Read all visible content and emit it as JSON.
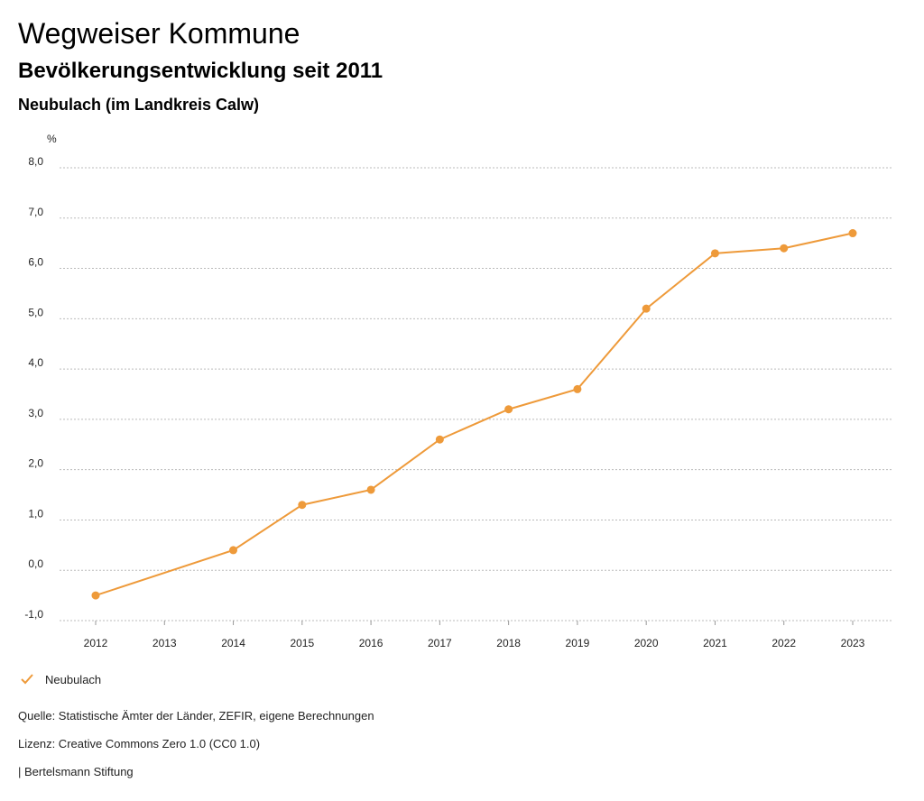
{
  "header": {
    "title": "Wegweiser Kommune",
    "subtitle": "Bevölkerungsentwicklung seit 2011",
    "region": "Neubulach (im Landkreis Calw)"
  },
  "legend": {
    "label": "Neubulach",
    "icon": "check-icon"
  },
  "footer": {
    "source": "Quelle: Statistische Ämter der Länder, ZEFIR, eigene Berechnungen",
    "license": "Lizenz: Creative Commons Zero 1.0 (CC0 1.0)",
    "publisher": "| Bertelsmann Stiftung"
  },
  "colors": {
    "series": "#ee9a3a",
    "grid": "#bbbbbb",
    "axis": "#999999"
  },
  "chart_data": {
    "type": "line",
    "title": "Bevölkerungsentwicklung seit 2011",
    "ylabel": "%",
    "xlabel": "",
    "categories": [
      "2012",
      "2013",
      "2014",
      "2015",
      "2016",
      "2017",
      "2018",
      "2019",
      "2020",
      "2021",
      "2022",
      "2023"
    ],
    "ylim": [
      -1,
      8
    ],
    "yticks": [
      "-1,0",
      "0,0",
      "1,0",
      "2,0",
      "3,0",
      "4,0",
      "5,0",
      "6,0",
      "7,0",
      "8,0"
    ],
    "grid": true,
    "series": [
      {
        "name": "Neubulach",
        "values": [
          -0.5,
          null,
          0.4,
          1.3,
          1.6,
          2.6,
          3.2,
          3.6,
          5.2,
          6.3,
          6.4,
          6.7
        ]
      }
    ]
  }
}
